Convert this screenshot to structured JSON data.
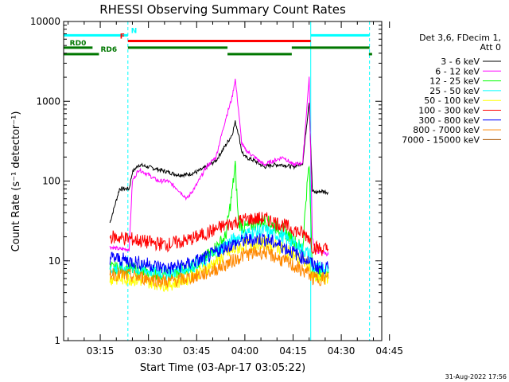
{
  "chart_data": {
    "type": "line",
    "title": "RHESSI Observing Summary Count Rates",
    "xlabel": "Start Time (03-Apr-17 03:05:22)",
    "ylabel": "Count Rate (s⁻¹ detector⁻¹)",
    "ylog": true,
    "ylim": [
      1,
      10000
    ],
    "xlim_minutes": [
      3.6,
      102.6
    ],
    "x_ticks": [
      {
        "label": "03:15",
        "minutes": 15
      },
      {
        "label": "03:30",
        "minutes": 30
      },
      {
        "label": "03:45",
        "minutes": 45
      },
      {
        "label": "04:00",
        "minutes": 60
      },
      {
        "label": "04:15",
        "minutes": 75
      },
      {
        "label": "04:30",
        "minutes": 90
      },
      {
        "label": "04:45",
        "minutes": 105
      }
    ],
    "y_ticks": [
      {
        "label": "1",
        "value": 1
      },
      {
        "label": "10",
        "value": 10
      },
      {
        "label": "100",
        "value": 100
      },
      {
        "label": "1000",
        "value": 1000
      },
      {
        "label": "10000",
        "value": 10000
      }
    ],
    "legend_header": [
      "Det 3,6, FDecim 1,",
      "Att 0"
    ],
    "legend_position": "right",
    "timestamp": "31-Aug-2022 17:56",
    "series": [
      {
        "name": "3 - 6 keV",
        "color": "#000000",
        "x": [
          18,
          21,
          24,
          25,
          27,
          30,
          33,
          36,
          39,
          42,
          45,
          48,
          51,
          54,
          56,
          57,
          58,
          59,
          60,
          63,
          66,
          69,
          72,
          75,
          78,
          80,
          81,
          82,
          84,
          86
        ],
        "y": [
          30,
          80,
          80,
          130,
          160,
          150,
          140,
          130,
          120,
          120,
          130,
          150,
          180,
          280,
          380,
          550,
          400,
          240,
          200,
          180,
          150,
          160,
          160,
          150,
          170,
          1000,
          75,
          72,
          75,
          72
        ]
      },
      {
        "name": "6 - 12 keV",
        "color": "#ff00ff",
        "x": [
          18,
          21,
          24,
          25,
          27,
          30,
          33,
          36,
          39,
          42,
          45,
          48,
          51,
          54,
          56,
          57,
          58,
          59,
          60,
          63,
          66,
          69,
          72,
          75,
          78,
          80,
          81,
          82,
          84,
          86
        ],
        "y": [
          15,
          14,
          14,
          100,
          140,
          120,
          100,
          100,
          80,
          60,
          90,
          150,
          200,
          600,
          1100,
          1900,
          800,
          300,
          250,
          200,
          160,
          180,
          200,
          160,
          170,
          2000,
          20,
          13,
          13,
          12
        ]
      },
      {
        "name": "12 - 25 keV",
        "color": "#00ff00",
        "x": [
          18,
          24,
          30,
          36,
          42,
          48,
          54,
          56,
          57,
          58,
          60,
          66,
          72,
          78,
          79,
          80,
          81,
          82,
          84,
          86
        ],
        "y": [
          8,
          8,
          7,
          6.5,
          8,
          11,
          20,
          70,
          160,
          30,
          26,
          32,
          24,
          14,
          60,
          160,
          8,
          7,
          7,
          7
        ]
      },
      {
        "name": "25 - 50 keV",
        "color": "#00ffff",
        "x": [
          18,
          24,
          30,
          36,
          42,
          48,
          54,
          60,
          66,
          72,
          78,
          80,
          81,
          86
        ],
        "y": [
          8,
          8,
          7.5,
          7,
          8,
          10,
          16,
          22,
          24,
          20,
          14,
          12,
          8,
          8
        ]
      },
      {
        "name": "50 - 100 keV",
        "color": "#ffff00",
        "x": [
          18,
          24,
          30,
          36,
          42,
          48,
          54,
          60,
          66,
          72,
          78,
          80,
          81,
          86
        ],
        "y": [
          6,
          6,
          5.5,
          5,
          6,
          8,
          12,
          16,
          17,
          14,
          10,
          9,
          6,
          6
        ]
      },
      {
        "name": "100 - 300 keV",
        "color": "#ff0000",
        "x": [
          18,
          24,
          30,
          36,
          42,
          48,
          54,
          60,
          66,
          72,
          78,
          80,
          81,
          84,
          86
        ],
        "y": [
          20,
          19,
          17,
          16,
          18,
          22,
          28,
          33,
          34,
          28,
          22,
          20,
          15,
          14,
          14
        ]
      },
      {
        "name": "300 - 800 keV",
        "color": "#0000ff",
        "x": [
          18,
          24,
          30,
          36,
          42,
          48,
          54,
          60,
          66,
          72,
          78,
          80,
          81,
          84,
          86
        ],
        "y": [
          11,
          10,
          9,
          8,
          9,
          11,
          15,
          18,
          19,
          15,
          11,
          10,
          9,
          8,
          8
        ]
      },
      {
        "name": "800 - 7000 keV",
        "color": "#ff8800",
        "x": [
          18,
          24,
          30,
          36,
          42,
          48,
          54,
          60,
          66,
          72,
          78,
          80,
          81,
          84,
          86
        ],
        "y": [
          7,
          6.5,
          6,
          5.5,
          6,
          7,
          9,
          12,
          13,
          10,
          7.5,
          7,
          6,
          6,
          6
        ]
      },
      {
        "name": "7000 - 15000 keV",
        "color": "#aa5500",
        "x": [],
        "y": []
      }
    ],
    "flags": [
      {
        "label": "N",
        "color": "#00ffff",
        "segments": [
          [
            3.6,
            23.6
          ],
          [
            80.5,
            98.8
          ]
        ],
        "value": 6700
      },
      {
        "label": "F",
        "color": "#ff0000",
        "segments": [
          [
            23.6,
            80.5
          ]
        ],
        "value": 5700
      },
      {
        "label": "RD0",
        "color": "#007700",
        "segments": [
          [
            3.6,
            12.6
          ],
          [
            23.6,
            54.6
          ],
          [
            74.6,
            98.8
          ]
        ],
        "value": 4700
      },
      {
        "label": "RD6",
        "color": "#007700",
        "segments": [
          [
            3.6,
            14.6
          ],
          [
            54.6,
            74.6
          ],
          [
            98.6,
            99.6
          ]
        ],
        "value": 3900
      }
    ],
    "vlines": [
      {
        "minutes": 3.6,
        "color": "#00ffff",
        "style": "solid"
      },
      {
        "minutes": 23.6,
        "color": "#00ffff",
        "style": "dashed"
      },
      {
        "minutes": 80.5,
        "color": "#00ffff",
        "style": "solid"
      },
      {
        "minutes": 98.8,
        "color": "#00ffff",
        "style": "dashed"
      }
    ]
  }
}
